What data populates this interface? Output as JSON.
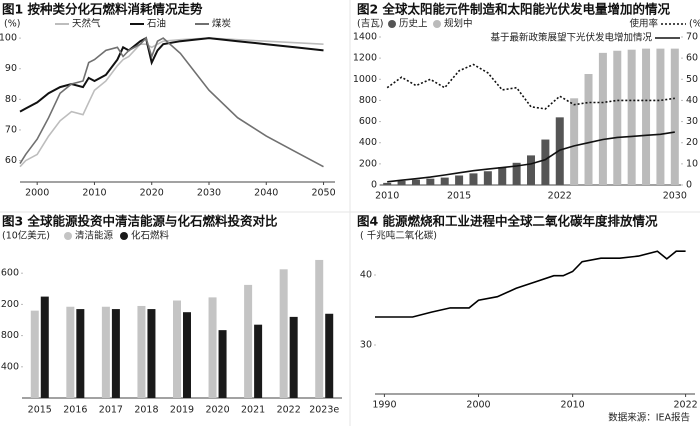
{
  "chart_data": [
    {
      "type": "line",
      "title": "图1 按种类分化石燃料消耗情况走势",
      "y_label": "(%)",
      "x": [
        1997,
        1998,
        2000,
        2002,
        2004,
        2006,
        2008,
        2009,
        2010,
        2012,
        2014,
        2015,
        2016,
        2018,
        2019,
        2020,
        2021,
        2022,
        2025,
        2030,
        2035,
        2040,
        2045,
        2050
      ],
      "xlim": [
        1997,
        2052
      ],
      "ylim": [
        53,
        102
      ],
      "xticks": [
        2000,
        2010,
        2020,
        2030,
        2040,
        2050
      ],
      "yticks": [
        60,
        70,
        80,
        90,
        100
      ],
      "series": [
        {
          "name": "天然气",
          "color": "#bdbdbd",
          "values": [
            58,
            60,
            62,
            68,
            73,
            76,
            75,
            79,
            83,
            86,
            91,
            93,
            94,
            98,
            98,
            97,
            98,
            99,
            99.5,
            100,
            99.5,
            99,
            98.5,
            98
          ]
        },
        {
          "name": "石油",
          "color": "#111111",
          "values": [
            76,
            77,
            79,
            82,
            84,
            85,
            84,
            87,
            86,
            88,
            93,
            97,
            96,
            99,
            100,
            92,
            96,
            98,
            99,
            100,
            99,
            98,
            97,
            96
          ]
        },
        {
          "name": "煤炭",
          "color": "#707070",
          "values": [
            59,
            62,
            67,
            74,
            82,
            85,
            86,
            92,
            93,
            96,
            97,
            94,
            96,
            98,
            100,
            94,
            99,
            100,
            95,
            83,
            74,
            68,
            63,
            58
          ]
        }
      ]
    },
    {
      "type": "combo",
      "title": "图2 全球太阳能元件制造和太阳能光伏发电量增加的情况",
      "y_label": "(吉瓦)",
      "y2_label": "(%)",
      "categories": [
        "2010",
        null,
        null,
        null,
        null,
        "2015",
        null,
        null,
        null,
        null,
        null,
        null,
        "2022",
        null,
        null,
        null,
        null,
        null,
        null,
        null,
        "2030"
      ],
      "ylim": [
        0,
        1400
      ],
      "yticks": [
        0,
        200,
        400,
        600,
        800,
        1000,
        1200,
        1400
      ],
      "y2lim": [
        0,
        70
      ],
      "y2ticks": [
        0,
        10,
        20,
        30,
        40,
        50,
        60,
        70
      ],
      "series": [
        {
          "name": "历史上",
          "kind": "bar",
          "color": "#555555",
          "values": [
            20,
            40,
            50,
            60,
            70,
            90,
            110,
            130,
            170,
            210,
            280,
            430,
            640,
            null,
            null,
            null,
            null,
            null,
            null,
            null,
            null
          ]
        },
        {
          "name": "规划中",
          "kind": "bar",
          "color": "#bbbbbb",
          "values": [
            null,
            null,
            null,
            null,
            null,
            null,
            null,
            null,
            null,
            null,
            null,
            null,
            null,
            820,
            1050,
            1250,
            1270,
            1280,
            1290,
            1290,
            1290
          ]
        },
        {
          "name": "使用率",
          "kind": "line",
          "style": "dotted",
          "axis": "y2",
          "color": "#111111",
          "values": [
            46,
            51,
            47,
            50,
            46,
            54,
            57,
            53,
            45,
            46,
            37,
            36,
            42,
            38,
            39,
            39,
            40,
            40,
            40,
            40,
            41
          ]
        },
        {
          "name": "基于最新政策展望下光伏发电增加情况",
          "kind": "line",
          "style": "solid",
          "color": "#111111",
          "values": [
            30,
            45,
            60,
            75,
            95,
            115,
            135,
            150,
            165,
            180,
            200,
            240,
            330,
            370,
            400,
            430,
            450,
            460,
            470,
            480,
            500
          ]
        }
      ]
    },
    {
      "type": "bar",
      "title": "图3 全球能源投资中清洁能源与化石燃料投资对比",
      "y_label": "(10亿美元)",
      "categories": [
        "2015",
        "2016",
        "2017",
        "2018",
        "2019",
        "2020",
        "2021",
        "2022",
        "2023e"
      ],
      "ylim": [
        0,
        2000
      ],
      "yticks": [
        400,
        800,
        1200,
        1600
      ],
      "series": [
        {
          "name": "清洁能源",
          "color": "#c4c4c4",
          "values": [
            1120,
            1170,
            1170,
            1180,
            1250,
            1290,
            1450,
            1650,
            1770
          ]
        },
        {
          "name": "化石燃料",
          "color": "#1a1a1a",
          "values": [
            1300,
            1140,
            1140,
            1140,
            1100,
            870,
            940,
            1040,
            1080
          ]
        }
      ]
    },
    {
      "type": "line",
      "title": "图4 能源燃烧和工业进程中全球二氧化碳年度排放情况",
      "y_label": "( 千兆吨二氧化碳)",
      "x": [
        1989,
        1990,
        1993,
        1995,
        1997,
        1999,
        2000,
        2002,
        2004,
        2006,
        2008,
        2009,
        2010,
        2011,
        2013,
        2015,
        2017,
        2019,
        2020,
        2021,
        2022
      ],
      "xlim": [
        1989,
        2023
      ],
      "ylim": [
        23,
        44
      ],
      "xticks": [
        1990,
        2000,
        2010,
        2022
      ],
      "yticks": [
        30,
        40
      ],
      "series": [
        {
          "color": "#000000",
          "values": [
            34,
            34,
            34,
            34.7,
            35.3,
            35.3,
            36.4,
            36.9,
            38.1,
            39,
            39.9,
            39.9,
            40.5,
            41.9,
            42.4,
            42.4,
            42.7,
            43.4,
            42.3,
            43.4,
            43.4
          ]
        }
      ]
    }
  ],
  "source": "数据来源：IEA报告"
}
